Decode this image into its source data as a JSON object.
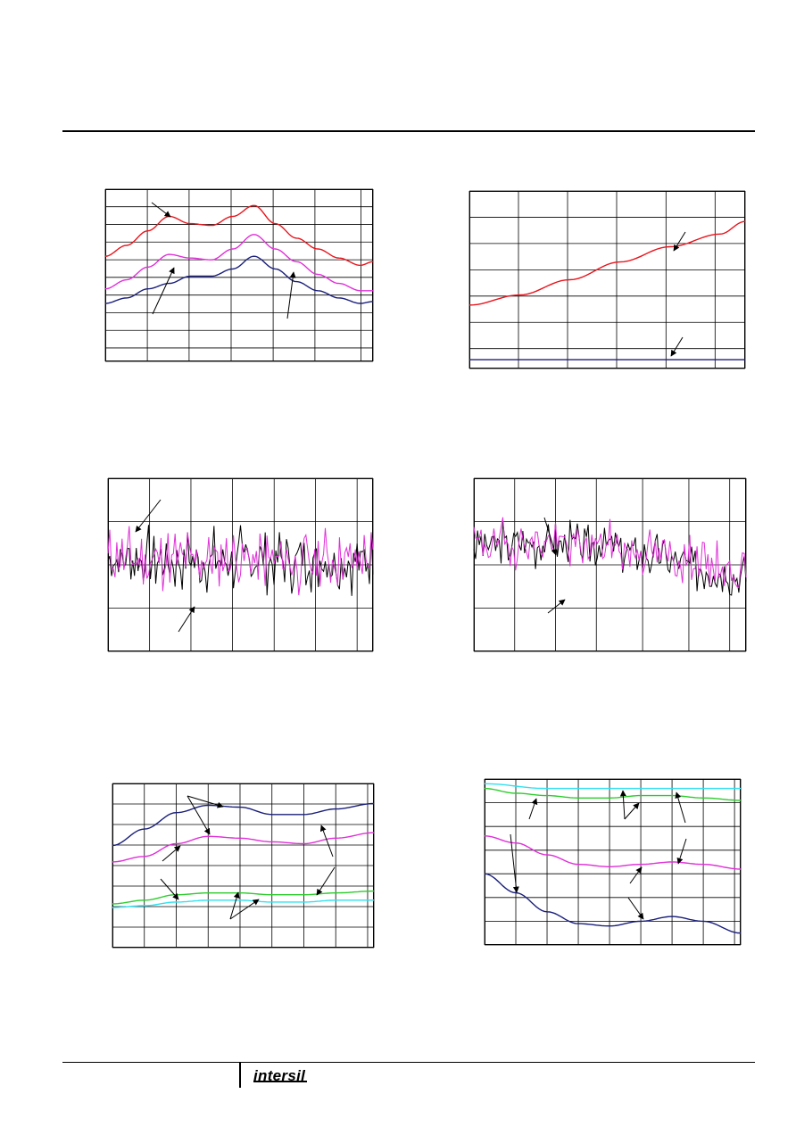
{
  "footer": {
    "logo_text": "intersil"
  },
  "colors": {
    "red": "#e8141c",
    "magenta": "#e030d8",
    "navy": "#1a1f7a",
    "green": "#2ccc2c",
    "cyan": "#30e0f0",
    "black": "#000000"
  },
  "chart_data": [
    {
      "id": "c1",
      "type": "line",
      "grid": true,
      "xlim": [
        0,
        6.3
      ],
      "ylim": [
        0,
        9.5
      ],
      "series": [
        {
          "color": "red",
          "x": [
            0,
            0.5,
            1,
            1.5,
            2,
            2.5,
            3,
            3.5,
            4,
            4.5,
            5,
            5.5,
            6,
            6.3
          ],
          "y": [
            5.8,
            6.4,
            7.2,
            8.0,
            7.6,
            7.5,
            8.0,
            8.6,
            7.6,
            6.8,
            6.2,
            5.7,
            5.3,
            5.5
          ]
        },
        {
          "color": "magenta",
          "x": [
            0,
            0.5,
            1,
            1.5,
            2,
            2.5,
            3,
            3.5,
            4,
            4.5,
            5,
            5.5,
            6,
            6.3
          ],
          "y": [
            4.0,
            4.5,
            5.2,
            5.9,
            5.7,
            5.6,
            6.2,
            7.0,
            6.2,
            5.5,
            4.8,
            4.3,
            3.9,
            3.9
          ]
        },
        {
          "color": "navy",
          "x": [
            0,
            0.5,
            1,
            1.5,
            2,
            2.5,
            3,
            3.5,
            4,
            4.5,
            5,
            5.5,
            6,
            6.3
          ],
          "y": [
            3.2,
            3.5,
            4.0,
            4.3,
            4.7,
            4.7,
            5.1,
            5.8,
            5.1,
            4.4,
            3.9,
            3.5,
            3.2,
            3.3
          ]
        }
      ]
    },
    {
      "id": "c2",
      "type": "line",
      "grid": true,
      "xlim": [
        0,
        5.5
      ],
      "ylim": [
        0,
        7
      ],
      "series": [
        {
          "color": "red",
          "x": [
            0,
            1,
            2,
            3,
            4,
            5,
            5.5
          ],
          "y": [
            2.5,
            2.9,
            3.5,
            4.2,
            4.8,
            5.3,
            5.8
          ]
        },
        {
          "color": "navy",
          "x": [
            0,
            5.5
          ],
          "y": [
            0.35,
            0.35
          ]
        }
      ]
    },
    {
      "id": "c3",
      "type": "line",
      "grid": true,
      "xlim": [
        0,
        6.3
      ],
      "ylim": [
        -2,
        2
      ],
      "series": [
        {
          "color": "black",
          "noise": {
            "seed": 7,
            "n": 150,
            "base": 0.1,
            "trend": 0.0,
            "amp": 0.55
          }
        },
        {
          "color": "magenta",
          "noise": {
            "seed": 11,
            "n": 150,
            "base": 0.1,
            "trend": 0.0,
            "amp": 0.55
          }
        }
      ]
    },
    {
      "id": "c4",
      "type": "line",
      "grid": true,
      "xlim": [
        0,
        5.5
      ],
      "ylim": [
        -2,
        2
      ],
      "series": [
        {
          "color": "black",
          "noise": {
            "seed": 3,
            "n": 150,
            "base": 0.5,
            "trend": -0.8,
            "amp": 0.4
          }
        },
        {
          "color": "magenta",
          "noise": {
            "seed": 19,
            "n": 150,
            "base": 0.5,
            "trend": -0.7,
            "amp": 0.4
          }
        }
      ]
    },
    {
      "id": "c5",
      "type": "line",
      "grid": true,
      "xlim": [
        0,
        8.2
      ],
      "ylim": [
        0,
        9
      ],
      "series": [
        {
          "color": "navy",
          "x": [
            0,
            1,
            2,
            3,
            4,
            5,
            6,
            7,
            8.2
          ],
          "y": [
            5.6,
            6.5,
            7.4,
            7.8,
            7.7,
            7.3,
            7.3,
            7.6,
            7.9
          ]
        },
        {
          "color": "magenta",
          "x": [
            0,
            1,
            2,
            3,
            4,
            5,
            6,
            7,
            8.2
          ],
          "y": [
            4.7,
            5.0,
            5.7,
            6.1,
            6.0,
            5.8,
            5.7,
            6.0,
            6.3
          ]
        },
        {
          "color": "green",
          "x": [
            0,
            1,
            2,
            3,
            4,
            5,
            6,
            7,
            8.2
          ],
          "y": [
            2.4,
            2.6,
            2.9,
            3.0,
            3.0,
            2.9,
            2.9,
            3.0,
            3.1
          ]
        },
        {
          "color": "cyan",
          "x": [
            0,
            1,
            2,
            3,
            4,
            5,
            6,
            7,
            8.2
          ],
          "y": [
            2.2,
            2.3,
            2.5,
            2.6,
            2.6,
            2.5,
            2.5,
            2.6,
            2.6
          ]
        }
      ]
    },
    {
      "id": "c6",
      "type": "line",
      "grid": true,
      "xlim": [
        0,
        8.2
      ],
      "ylim": [
        0,
        7
      ],
      "series": [
        {
          "color": "cyan",
          "x": [
            0,
            2,
            4,
            6,
            8.2
          ],
          "y": [
            6.8,
            6.6,
            6.6,
            6.6,
            6.6
          ]
        },
        {
          "color": "green",
          "x": [
            0,
            1,
            2,
            3,
            4,
            5,
            6,
            7,
            8.2
          ],
          "y": [
            6.6,
            6.4,
            6.3,
            6.2,
            6.2,
            6.3,
            6.3,
            6.2,
            6.1
          ]
        },
        {
          "color": "magenta",
          "x": [
            0,
            1,
            2,
            3,
            4,
            5,
            6,
            7,
            8.2
          ],
          "y": [
            4.6,
            4.3,
            3.8,
            3.4,
            3.3,
            3.4,
            3.5,
            3.4,
            3.2
          ]
        },
        {
          "color": "navy",
          "x": [
            0,
            1,
            2,
            3,
            4,
            5,
            6,
            7,
            8.2
          ],
          "y": [
            3.0,
            2.2,
            1.4,
            0.9,
            0.8,
            1.0,
            1.2,
            1.0,
            0.5
          ]
        }
      ]
    }
  ]
}
